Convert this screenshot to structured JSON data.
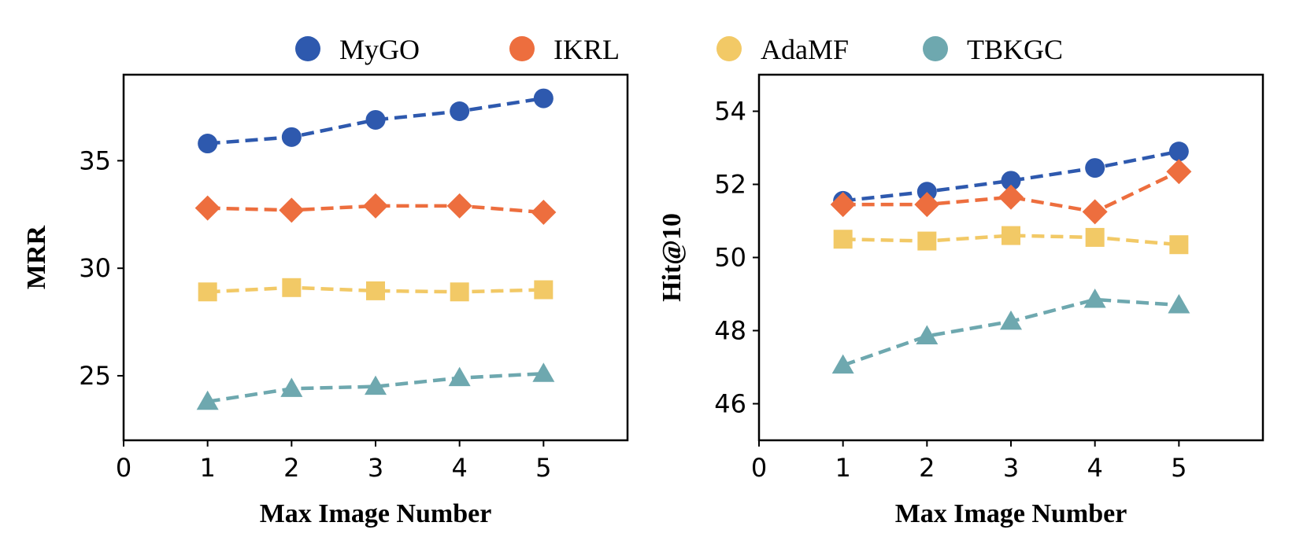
{
  "legend": [
    {
      "name": "MyGO",
      "color": "#2E59AE"
    },
    {
      "name": "IKRL",
      "color": "#ED6E3E"
    },
    {
      "name": "AdaMF",
      "color": "#F2C966"
    },
    {
      "name": "TBKGC",
      "color": "#6EA8AF"
    }
  ],
  "chart_data": [
    {
      "type": "line",
      "title": "",
      "xlabel": "Max Image Number",
      "ylabel": "MRR",
      "xlim": [
        0,
        6
      ],
      "ylim": [
        22,
        39
      ],
      "xticks": [
        0,
        1,
        2,
        3,
        4,
        5
      ],
      "yticks": [
        25,
        30,
        35
      ],
      "x": [
        1,
        2,
        3,
        4,
        5
      ],
      "series": [
        {
          "name": "MyGO",
          "marker": "circle",
          "color": "#2E59AE",
          "values": [
            35.8,
            36.1,
            36.9,
            37.3,
            37.9
          ]
        },
        {
          "name": "IKRL",
          "marker": "diamond",
          "color": "#ED6E3E",
          "values": [
            32.8,
            32.7,
            32.9,
            32.9,
            32.6
          ]
        },
        {
          "name": "AdaMF",
          "marker": "square",
          "color": "#F2C966",
          "values": [
            28.9,
            29.1,
            28.95,
            28.9,
            29.0
          ]
        },
        {
          "name": "TBKGC",
          "marker": "triangle",
          "color": "#6EA8AF",
          "values": [
            23.8,
            24.4,
            24.5,
            24.9,
            25.1
          ]
        }
      ]
    },
    {
      "type": "line",
      "title": "",
      "xlabel": "Max Image Number",
      "ylabel": "Hit@10",
      "xlim": [
        0,
        6
      ],
      "ylim": [
        45,
        55
      ],
      "xticks": [
        0,
        1,
        2,
        3,
        4,
        5
      ],
      "yticks": [
        46,
        48,
        50,
        52,
        54
      ],
      "x": [
        1,
        2,
        3,
        4,
        5
      ],
      "series": [
        {
          "name": "MyGO",
          "marker": "circle",
          "color": "#2E59AE",
          "values": [
            51.55,
            51.8,
            52.1,
            52.45,
            52.9
          ]
        },
        {
          "name": "IKRL",
          "marker": "diamond",
          "color": "#ED6E3E",
          "values": [
            51.45,
            51.45,
            51.65,
            51.25,
            52.35
          ]
        },
        {
          "name": "AdaMF",
          "marker": "square",
          "color": "#F2C966",
          "values": [
            50.5,
            50.45,
            50.6,
            50.55,
            50.35
          ]
        },
        {
          "name": "TBKGC",
          "marker": "triangle",
          "color": "#6EA8AF",
          "values": [
            47.05,
            47.85,
            48.25,
            48.85,
            48.7
          ]
        }
      ]
    }
  ]
}
